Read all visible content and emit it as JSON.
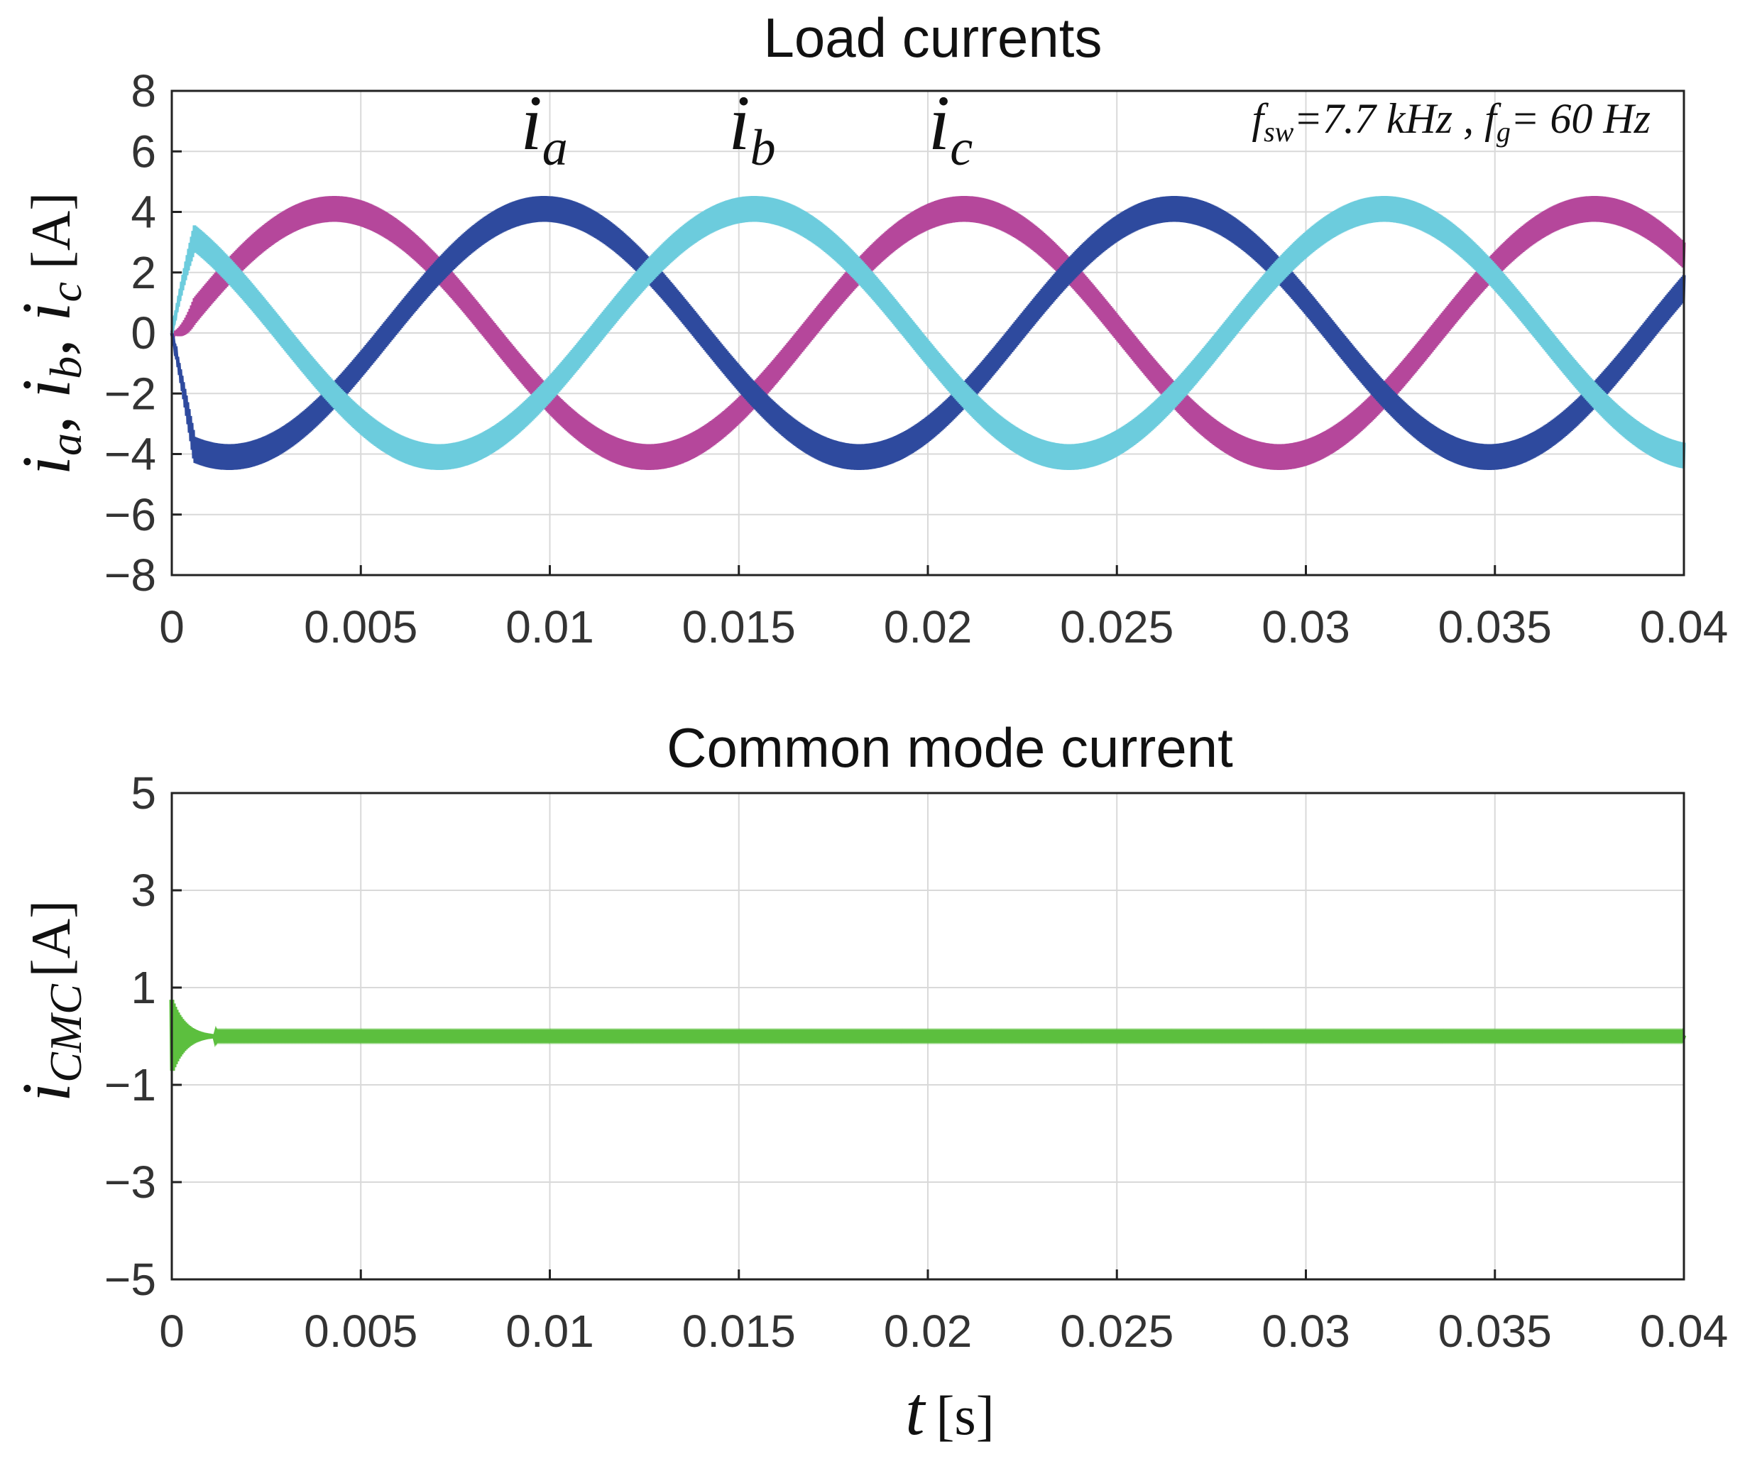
{
  "chart_data": [
    {
      "type": "line",
      "title": "Load currents",
      "xlim": [
        0,
        0.04
      ],
      "ylim": [
        -8,
        8
      ],
      "xticks": [
        "0",
        "0.005",
        "0.01",
        "0.015",
        "0.02",
        "0.025",
        "0.03",
        "0.035",
        "0.04"
      ],
      "yticks": [
        "8",
        "6",
        "4",
        "2",
        "0",
        "−2",
        "−4",
        "−6",
        "−8"
      ],
      "ylabel": {
        "vars": [
          [
            "i",
            "a"
          ],
          [
            "i",
            "b"
          ],
          [
            "i",
            "c"
          ]
        ],
        "unit": "[A]"
      },
      "grid": true,
      "annotation": {
        "f1": "f",
        "f1_sub": "sw",
        "f1_rest": "=7.7 kHz , ",
        "f2": "f",
        "f2_sub": "g",
        "f2_rest": "= 60 Hz"
      },
      "series": [
        {
          "name": "i_a",
          "label_main": "i",
          "label_sub": "a",
          "color": "#2E4A9E",
          "amplitude": 4.1,
          "ripple": 0.85,
          "phase_deg": 0,
          "startup_dip": -4.0,
          "label_x": 0.00985
        },
        {
          "name": "i_b",
          "label_main": "i",
          "label_sub": "b",
          "color": "#B5479B",
          "amplitude": 4.1,
          "ripple": 0.85,
          "phase_deg": -120,
          "label_x": 0.01535
        },
        {
          "name": "i_c",
          "label_main": "i",
          "label_sub": "c",
          "color": "#6CCCDD",
          "amplitude": 4.1,
          "ripple": 0.85,
          "phase_deg": 120,
          "label_x": 0.0206
        }
      ],
      "frequency_hz": 60,
      "phase_shift_s": 0.00555
    },
    {
      "type": "line",
      "title": "Common mode current",
      "xlim": [
        0,
        0.04
      ],
      "ylim": [
        -5,
        5
      ],
      "xticks": [
        "0",
        "0.005",
        "0.01",
        "0.015",
        "0.02",
        "0.025",
        "0.03",
        "0.035",
        "0.04"
      ],
      "yticks": [
        "5",
        "3",
        "1",
        "−1",
        "−3",
        "−5"
      ],
      "ylabel": {
        "main": "i",
        "sub": "CMC",
        "unit": "[A]"
      },
      "xlabel": {
        "main": "t",
        "unit": "[s]"
      },
      "grid": true,
      "series": [
        {
          "name": "i_CMC",
          "color": "#5CBF3E",
          "steady_value": 0.0,
          "transient_peak": 0.75,
          "transient_end": 0.0005
        }
      ]
    }
  ]
}
